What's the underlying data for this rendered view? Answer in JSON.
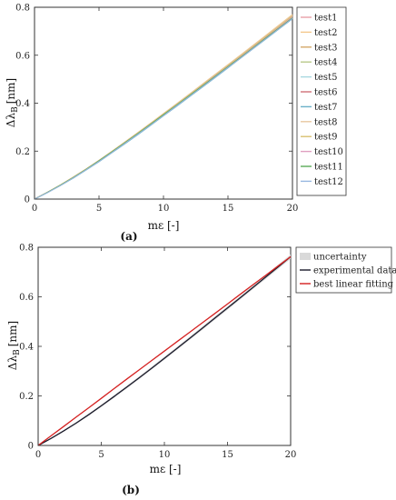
{
  "colors": {
    "test1": "#e8a0a8",
    "test2": "#f4c88c",
    "test3": "#d4a86a",
    "test4": "#b9c88a",
    "test5": "#a8d8e0",
    "test6": "#d07078",
    "test7": "#6ab0c8",
    "test8": "#e8c8a0",
    "test9": "#d8c070",
    "test10": "#e0a0c0",
    "test11": "#5aaa58",
    "test12": "#98b8e0",
    "uncertainty": "#d9d9d9",
    "experimental": "#1a1a2a",
    "fitting": "#d42020"
  },
  "chart_data": [
    {
      "type": "line",
      "caption": "(a)",
      "xlabel": "mε [-]",
      "ylabel": "Δλ_B [nm]",
      "ylabel_main": "Δλ",
      "ylabel_sub": "B",
      "ylabel_unit": "[nm]",
      "xlim": [
        0,
        20
      ],
      "ylim": [
        0,
        0.8
      ],
      "xticks": [
        "0",
        "5",
        "10",
        "15",
        "20"
      ],
      "yticks": [
        "0",
        "0.2",
        "0.4",
        "0.6",
        "0.8"
      ],
      "grid": false,
      "legend_position": "top-right",
      "x": [
        0,
        1,
        2,
        3,
        4,
        5,
        6,
        7,
        8,
        9,
        10,
        11,
        12,
        13,
        14,
        15,
        16,
        17,
        18,
        19,
        20
      ],
      "series": [
        {
          "name": "test1",
          "values": [
            0,
            0.028,
            0.058,
            0.09,
            0.124,
            0.16,
            0.197,
            0.235,
            0.274,
            0.313,
            0.353,
            0.393,
            0.433,
            0.474,
            0.515,
            0.556,
            0.597,
            0.638,
            0.679,
            0.721,
            0.763
          ]
        },
        {
          "name": "test2",
          "values": [
            0,
            0.029,
            0.059,
            0.092,
            0.126,
            0.162,
            0.2,
            0.238,
            0.277,
            0.317,
            0.357,
            0.397,
            0.438,
            0.479,
            0.52,
            0.561,
            0.602,
            0.644,
            0.686,
            0.728,
            0.77
          ]
        },
        {
          "name": "test3",
          "values": [
            0,
            0.028,
            0.058,
            0.091,
            0.125,
            0.161,
            0.198,
            0.236,
            0.275,
            0.315,
            0.355,
            0.395,
            0.435,
            0.476,
            0.517,
            0.558,
            0.599,
            0.641,
            0.682,
            0.724,
            0.766
          ]
        },
        {
          "name": "test4",
          "values": [
            0,
            0.028,
            0.057,
            0.089,
            0.123,
            0.159,
            0.196,
            0.233,
            0.272,
            0.311,
            0.351,
            0.391,
            0.431,
            0.471,
            0.512,
            0.553,
            0.594,
            0.635,
            0.676,
            0.717,
            0.759
          ]
        },
        {
          "name": "test5",
          "values": [
            0,
            0.027,
            0.056,
            0.088,
            0.122,
            0.157,
            0.194,
            0.231,
            0.27,
            0.309,
            0.348,
            0.388,
            0.428,
            0.468,
            0.509,
            0.549,
            0.59,
            0.631,
            0.672,
            0.713,
            0.755
          ]
        },
        {
          "name": "test6",
          "values": [
            0,
            0.028,
            0.058,
            0.09,
            0.124,
            0.16,
            0.197,
            0.235,
            0.274,
            0.313,
            0.353,
            0.393,
            0.433,
            0.474,
            0.514,
            0.555,
            0.596,
            0.637,
            0.678,
            0.719,
            0.761
          ]
        },
        {
          "name": "test7",
          "values": [
            0,
            0.027,
            0.056,
            0.087,
            0.121,
            0.156,
            0.193,
            0.23,
            0.268,
            0.307,
            0.347,
            0.386,
            0.426,
            0.466,
            0.506,
            0.547,
            0.588,
            0.629,
            0.67,
            0.711,
            0.752
          ]
        },
        {
          "name": "test8",
          "values": [
            0,
            0.029,
            0.059,
            0.092,
            0.126,
            0.162,
            0.199,
            0.238,
            0.277,
            0.316,
            0.356,
            0.397,
            0.437,
            0.478,
            0.519,
            0.56,
            0.601,
            0.643,
            0.684,
            0.726,
            0.768
          ]
        },
        {
          "name": "test9",
          "values": [
            0,
            0.028,
            0.058,
            0.09,
            0.125,
            0.16,
            0.198,
            0.236,
            0.275,
            0.314,
            0.354,
            0.394,
            0.434,
            0.475,
            0.516,
            0.557,
            0.598,
            0.639,
            0.681,
            0.722,
            0.764
          ]
        },
        {
          "name": "test10",
          "values": [
            0,
            0.028,
            0.057,
            0.089,
            0.123,
            0.159,
            0.196,
            0.234,
            0.272,
            0.312,
            0.351,
            0.391,
            0.431,
            0.472,
            0.513,
            0.553,
            0.594,
            0.635,
            0.676,
            0.718,
            0.76
          ]
        },
        {
          "name": "test11",
          "values": [
            0,
            0.028,
            0.058,
            0.09,
            0.124,
            0.16,
            0.197,
            0.235,
            0.273,
            0.312,
            0.352,
            0.391,
            0.431,
            0.471,
            0.511,
            0.552,
            0.592,
            0.633,
            0.674,
            0.715,
            0.756
          ]
        },
        {
          "name": "test12",
          "values": [
            0,
            0.027,
            0.056,
            0.088,
            0.122,
            0.157,
            0.194,
            0.232,
            0.27,
            0.309,
            0.348,
            0.388,
            0.428,
            0.468,
            0.508,
            0.549,
            0.589,
            0.63,
            0.671,
            0.712,
            0.753
          ]
        }
      ]
    },
    {
      "type": "line",
      "caption": "(b)",
      "xlabel": "mε [-]",
      "ylabel": "Δλ_B [nm]",
      "ylabel_main": "Δλ",
      "ylabel_sub": "B",
      "ylabel_unit": "[nm]",
      "xlim": [
        0,
        20
      ],
      "ylim": [
        0,
        0.8
      ],
      "xticks": [
        "0",
        "5",
        "10",
        "15",
        "20"
      ],
      "yticks": [
        "0",
        "0.2",
        "0.4",
        "0.6",
        "0.8"
      ],
      "grid": false,
      "legend_position": "top-right",
      "x": [
        0,
        1,
        2,
        3,
        4,
        5,
        6,
        7,
        8,
        9,
        10,
        11,
        12,
        13,
        14,
        15,
        16,
        17,
        18,
        19,
        20
      ],
      "series": [
        {
          "name": "uncertainty",
          "kind": "band",
          "lower": [
            0,
            0.026,
            0.055,
            0.086,
            0.12,
            0.155,
            0.192,
            0.229,
            0.268,
            0.307,
            0.346,
            0.386,
            0.426,
            0.466,
            0.507,
            0.548,
            0.589,
            0.63,
            0.671,
            0.712,
            0.753
          ],
          "upper": [
            0,
            0.03,
            0.061,
            0.094,
            0.128,
            0.164,
            0.202,
            0.24,
            0.279,
            0.318,
            0.358,
            0.398,
            0.439,
            0.48,
            0.521,
            0.562,
            0.603,
            0.645,
            0.687,
            0.729,
            0.771
          ]
        },
        {
          "name": "experimental data",
          "values": [
            0,
            0.028,
            0.058,
            0.09,
            0.124,
            0.16,
            0.197,
            0.235,
            0.273,
            0.312,
            0.352,
            0.392,
            0.432,
            0.473,
            0.514,
            0.555,
            0.596,
            0.637,
            0.679,
            0.72,
            0.762
          ]
        },
        {
          "name": "best linear fitting",
          "values": [
            0,
            0.038,
            0.076,
            0.114,
            0.152,
            0.19,
            0.229,
            0.267,
            0.305,
            0.343,
            0.381,
            0.419,
            0.457,
            0.495,
            0.533,
            0.571,
            0.61,
            0.648,
            0.686,
            0.724,
            0.762
          ]
        }
      ]
    }
  ]
}
